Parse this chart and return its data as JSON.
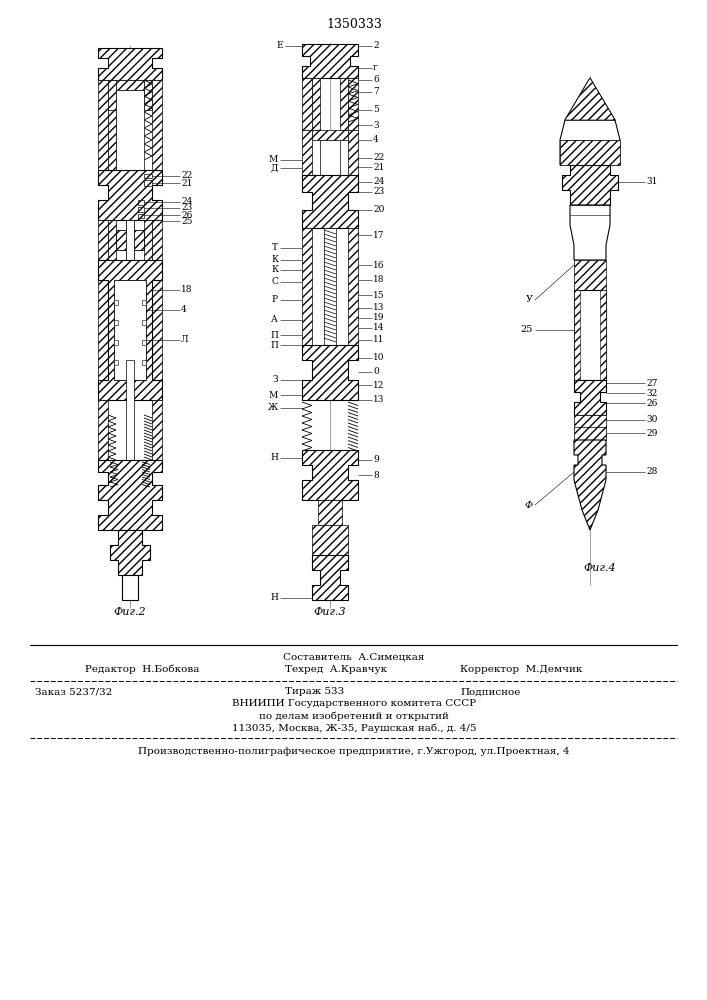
{
  "title_number": "1350333",
  "bg_color": "#ffffff",
  "line_color": "#000000",
  "fig2_caption": "Фиг.2",
  "fig3_caption": "Фиг.3",
  "fig4_caption": "Фиг.4",
  "footer_line1_center": "Составитель  А.Симецкая",
  "footer_line2_left": "Редактор  Н.Бобкова",
  "footer_line2_center": "Техред  А.Кравчук",
  "footer_line2_right": "Корректор  М.Демчик",
  "footer_line3_left": "Заказ 5237/32",
  "footer_line3_center": "Тираж 533",
  "footer_line3_right": "Подписное",
  "footer_line4": "ВНИИПИ Государственного комитета СССР",
  "footer_line5": "по делам изобретений и открытий",
  "footer_line6": "113035, Москва, Ж-35, Раушская наб., д. 4/5",
  "footer_line7": "Производственно-полиграфическое предприятие, г.Ужгород, ул.Проектная, 4"
}
